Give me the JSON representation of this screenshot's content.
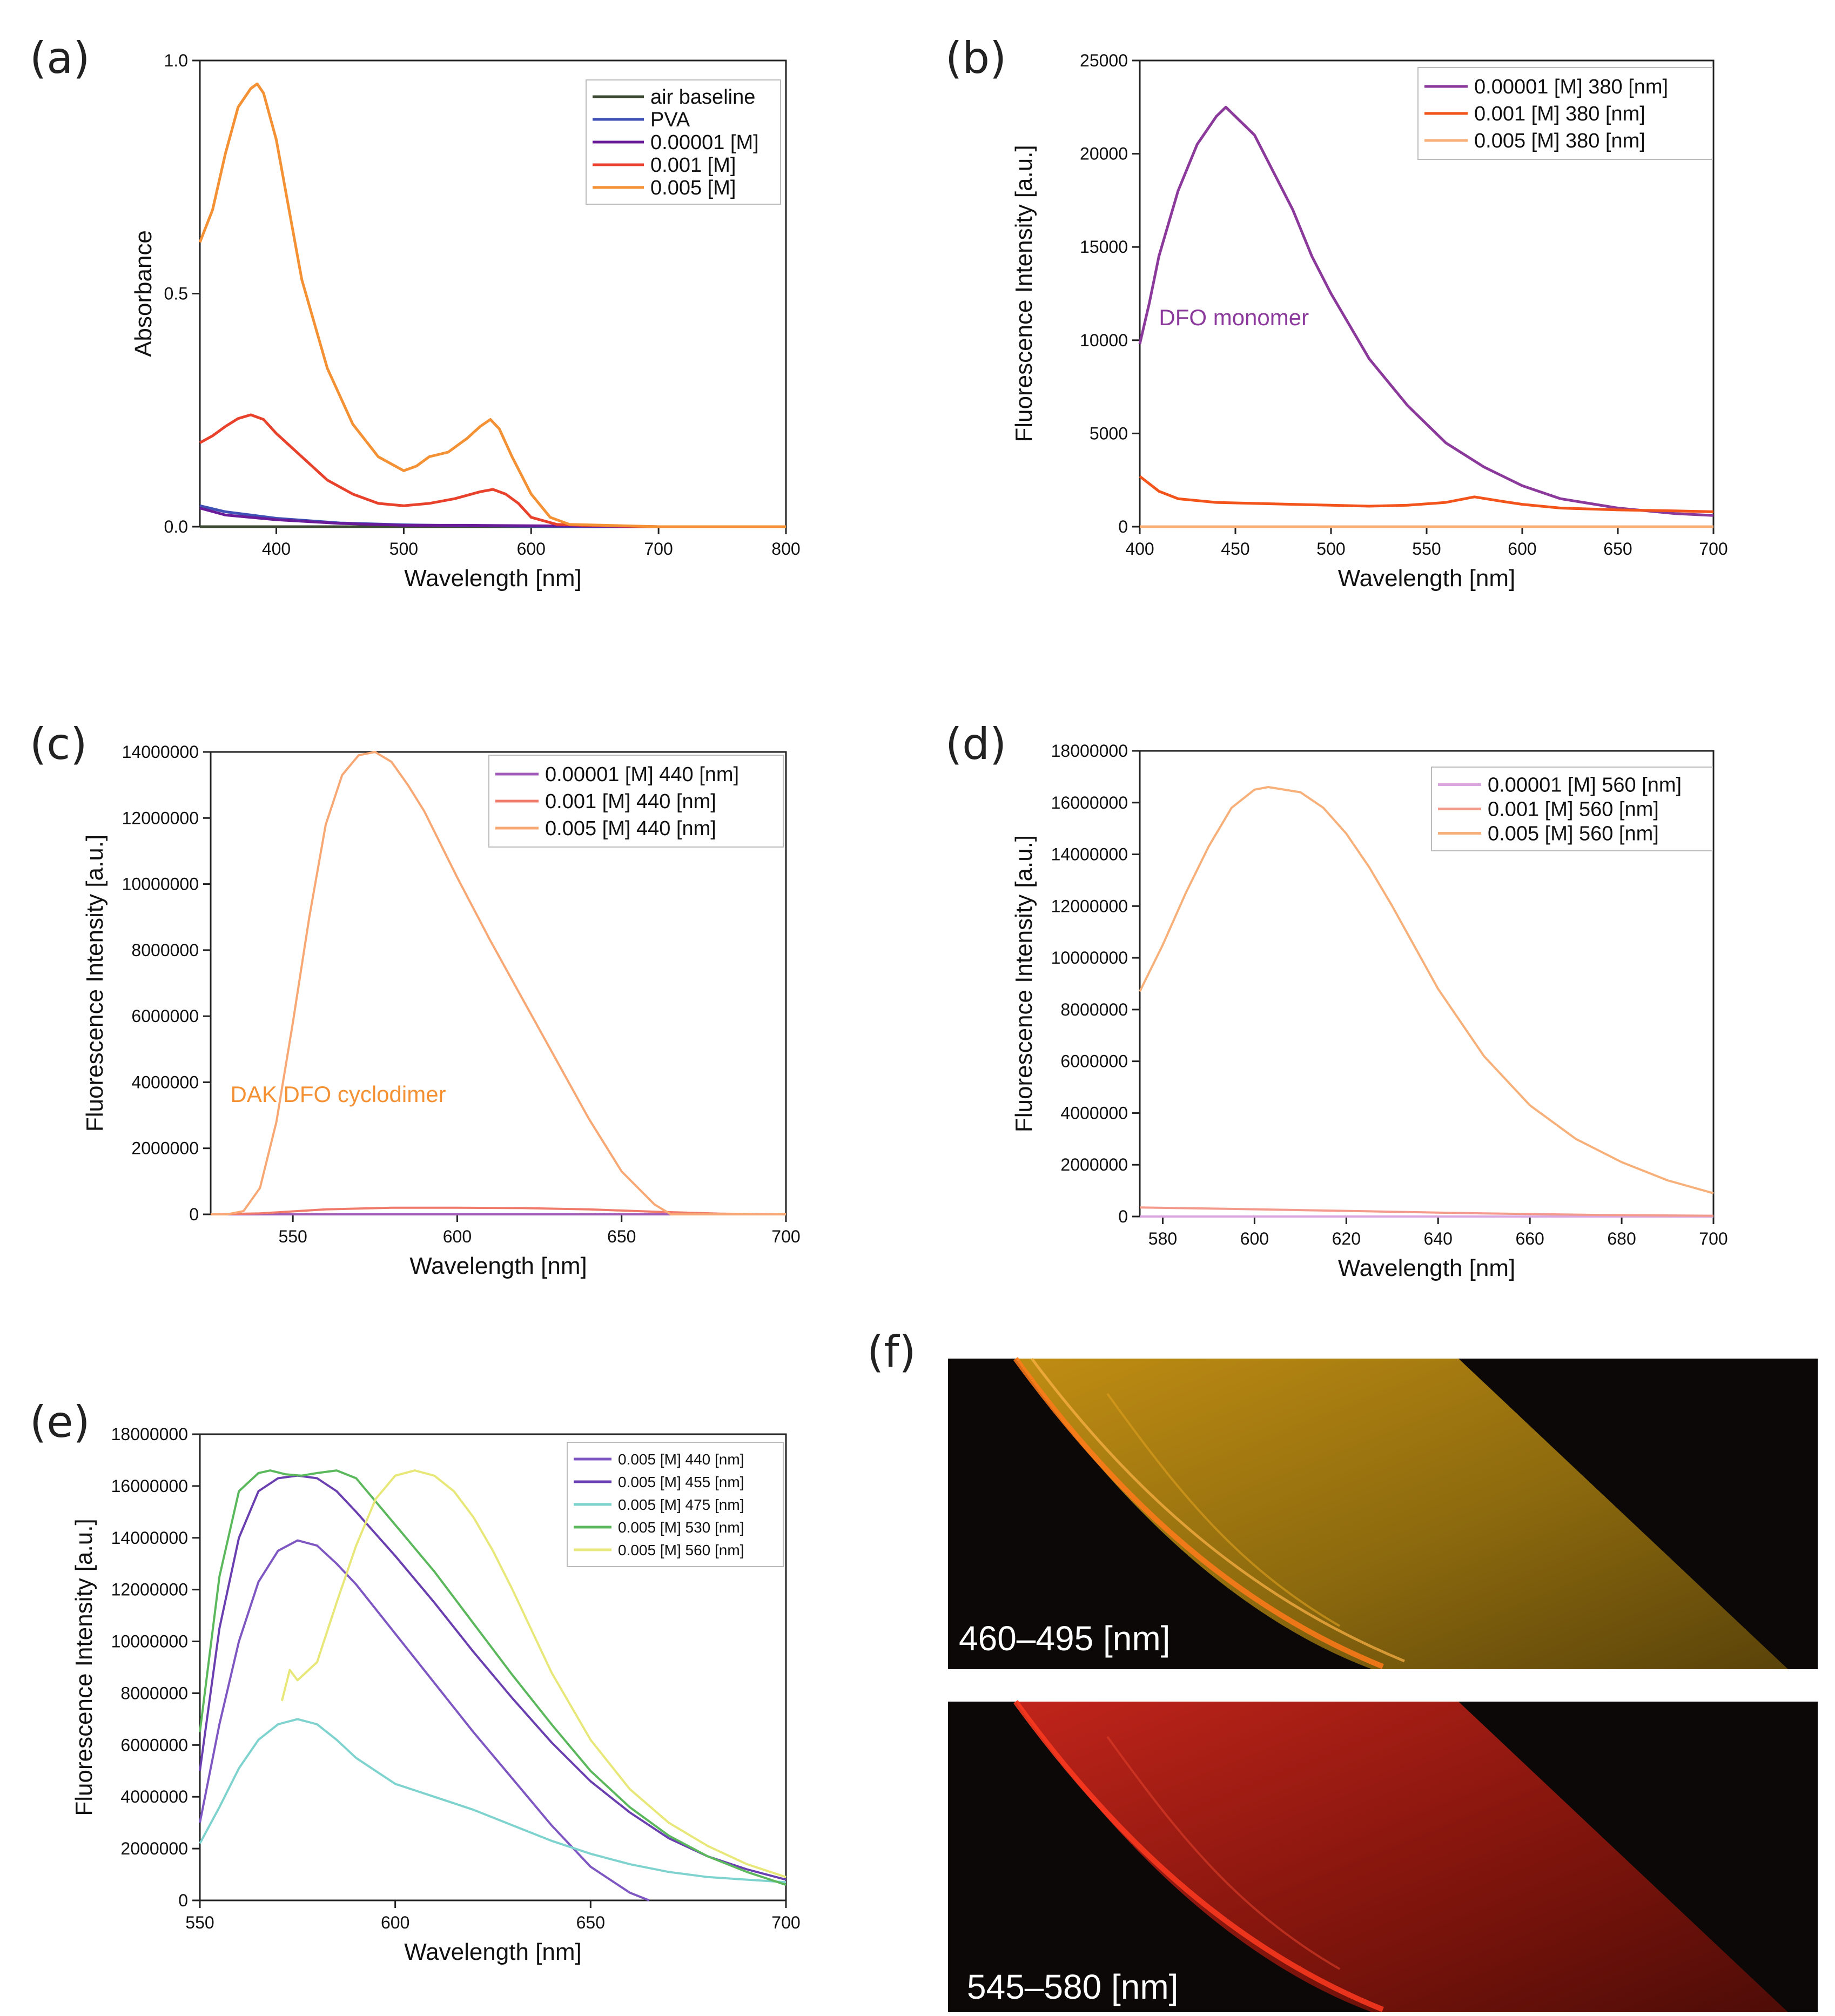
{
  "panels": {
    "a": "(a)",
    "b": "(b)",
    "c": "(c)",
    "d": "(d)",
    "e": "(e)",
    "f": "(f)"
  },
  "chart_data": [
    {
      "id": "a",
      "type": "line",
      "xlabel": "Wavelength [nm]",
      "ylabel": "Absorbance",
      "xlim": [
        340,
        800
      ],
      "ylim": [
        0,
        1.0
      ],
      "xticks": [
        400,
        500,
        600,
        700,
        800
      ],
      "yticks": [
        0.0,
        0.5,
        1.0
      ],
      "ytick_labels": [
        "0.0",
        "0.5",
        "1.0"
      ],
      "legend": "top-right",
      "series": [
        {
          "name": "air baseline",
          "color": "#3d4a33",
          "x": [
            340,
            400,
            500,
            600,
            700,
            800
          ],
          "y": [
            0.0,
            0.0,
            0.0,
            0.0,
            0.0,
            0.0
          ]
        },
        {
          "name": "PVA",
          "color": "#3f51b5",
          "x": [
            340,
            360,
            380,
            400,
            450,
            500,
            550,
            600,
            700,
            800
          ],
          "y": [
            0.045,
            0.032,
            0.025,
            0.018,
            0.008,
            0.004,
            0.002,
            0.001,
            0.0,
            0.0
          ]
        },
        {
          "name": "0.00001 [M]",
          "color": "#6a1b9a",
          "x": [
            340,
            360,
            380,
            400,
            450,
            500,
            550,
            600,
            700,
            800
          ],
          "y": [
            0.04,
            0.025,
            0.02,
            0.015,
            0.007,
            0.003,
            0.003,
            0.002,
            0.0,
            0.0
          ]
        },
        {
          "name": "0.001 [M]",
          "color": "#e8412c",
          "x": [
            340,
            350,
            360,
            370,
            380,
            390,
            400,
            420,
            440,
            460,
            480,
            500,
            520,
            540,
            560,
            570,
            580,
            590,
            600,
            620,
            650,
            700,
            800
          ],
          "y": [
            0.18,
            0.195,
            0.215,
            0.232,
            0.24,
            0.23,
            0.2,
            0.15,
            0.1,
            0.07,
            0.05,
            0.045,
            0.05,
            0.06,
            0.075,
            0.08,
            0.07,
            0.05,
            0.02,
            0.005,
            0.002,
            0.0,
            0.0
          ]
        },
        {
          "name": "0.005 [M]",
          "color": "#f39134",
          "x": [
            340,
            350,
            360,
            370,
            380,
            385,
            390,
            400,
            410,
            420,
            440,
            460,
            480,
            500,
            510,
            520,
            535,
            550,
            560,
            568,
            575,
            585,
            600,
            615,
            630,
            700,
            800
          ],
          "y": [
            0.61,
            0.68,
            0.8,
            0.9,
            0.94,
            0.95,
            0.93,
            0.83,
            0.68,
            0.53,
            0.34,
            0.22,
            0.15,
            0.12,
            0.13,
            0.15,
            0.16,
            0.19,
            0.215,
            0.23,
            0.21,
            0.15,
            0.07,
            0.02,
            0.005,
            0.0,
            0.0
          ]
        }
      ]
    },
    {
      "id": "b",
      "type": "line",
      "xlabel": "Wavelength [nm]",
      "ylabel": "Fluorescence Intensity [a.u.]",
      "xlim": [
        400,
        700
      ],
      "ylim": [
        0,
        25000
      ],
      "xticks": [
        400,
        450,
        500,
        550,
        600,
        650,
        700
      ],
      "yticks": [
        0,
        5000,
        10000,
        15000,
        20000,
        25000
      ],
      "ytick_labels": [
        "0",
        "5000",
        "10000",
        "15000",
        "20000",
        "25000"
      ],
      "legend": "top-right",
      "annotation": "DFO monomer",
      "series": [
        {
          "name": "0.00001 [M] 380 [nm]",
          "color": "#8b3a9c",
          "x": [
            400,
            405,
            410,
            420,
            430,
            440,
            445,
            450,
            460,
            470,
            480,
            490,
            500,
            520,
            540,
            560,
            580,
            600,
            620,
            650,
            680,
            700
          ],
          "y": [
            9800,
            12000,
            14500,
            18000,
            20500,
            22000,
            22500,
            22000,
            21000,
            19000,
            17000,
            14500,
            12500,
            9000,
            6500,
            4500,
            3200,
            2200,
            1500,
            1000,
            700,
            600
          ]
        },
        {
          "name": "0.001 [M] 380 [nm]",
          "color": "#f2541b",
          "x": [
            400,
            410,
            420,
            440,
            460,
            480,
            500,
            520,
            540,
            560,
            575,
            590,
            600,
            620,
            650,
            680,
            700
          ],
          "y": [
            2700,
            1900,
            1500,
            1300,
            1250,
            1200,
            1150,
            1100,
            1150,
            1300,
            1600,
            1350,
            1200,
            1000,
            900,
            850,
            800
          ]
        },
        {
          "name": "0.005 [M] 380 [nm]",
          "color": "#f8b07a",
          "x": [
            400,
            450,
            500,
            550,
            600,
            650,
            700
          ],
          "y": [
            0,
            0,
            0,
            0,
            0,
            0,
            0
          ]
        }
      ]
    },
    {
      "id": "c",
      "type": "line",
      "xlabel": "Wavelength [nm]",
      "ylabel": "Fluorescence Intensity [a.u.]",
      "xlim": [
        525,
        700
      ],
      "ylim": [
        0,
        14000000
      ],
      "xticks": [
        550,
        600,
        650,
        700
      ],
      "yticks": [
        0,
        2000000,
        4000000,
        6000000,
        8000000,
        10000000,
        12000000,
        14000000
      ],
      "ytick_labels": [
        "0",
        "2000000",
        "4000000",
        "6000000",
        "8000000",
        "10000000",
        "12000000",
        "14000000"
      ],
      "legend": "top-right",
      "annotation": "DAK DFO cyclodimer",
      "series": [
        {
          "name": "0.00001 [M] 440 [nm]",
          "color": "#a05cb8",
          "x": [
            525,
            600,
            700
          ],
          "y": [
            0,
            0,
            0
          ]
        },
        {
          "name": "0.001 [M] 440 [nm]",
          "color": "#f07b6a",
          "x": [
            525,
            540,
            560,
            580,
            600,
            620,
            640,
            660,
            680,
            700
          ],
          "y": [
            0,
            30000,
            150000,
            200000,
            200000,
            190000,
            150000,
            80000,
            20000,
            0
          ]
        },
        {
          "name": "0.005 [M] 440 [nm]",
          "color": "#f8a874",
          "x": [
            525,
            530,
            535,
            540,
            545,
            550,
            555,
            560,
            565,
            570,
            575,
            580,
            585,
            590,
            600,
            610,
            620,
            630,
            640,
            650,
            660,
            665,
            700
          ],
          "y": [
            0,
            0,
            100000,
            800000,
            2800000,
            5800000,
            9000000,
            11800000,
            13300000,
            13900000,
            14000000,
            13700000,
            13000000,
            12200000,
            10200000,
            8300000,
            6500000,
            4700000,
            2900000,
            1300000,
            300000,
            0,
            0
          ]
        }
      ]
    },
    {
      "id": "d",
      "type": "line",
      "xlabel": "Wavelength [nm]",
      "ylabel": "Fluorescence Intensity [a.u.]",
      "xlim": [
        575,
        700
      ],
      "ylim": [
        0,
        18000000
      ],
      "xticks": [
        580,
        600,
        620,
        640,
        660,
        680,
        700
      ],
      "yticks": [
        0,
        2000000,
        4000000,
        6000000,
        8000000,
        10000000,
        12000000,
        14000000,
        16000000,
        18000000
      ],
      "ytick_labels": [
        "0",
        "2000000",
        "4000000",
        "6000000",
        "8000000",
        "10000000",
        "12000000",
        "14000000",
        "16000000",
        "18000000"
      ],
      "legend": "top-right",
      "series": [
        {
          "name": "0.00001 [M] 560 [nm]",
          "color": "#d9a6e0",
          "x": [
            575,
            700
          ],
          "y": [
            0,
            0
          ]
        },
        {
          "name": "0.001 [M] 560 [nm]",
          "color": "#f39a8c",
          "x": [
            575,
            600,
            625,
            650,
            675,
            700
          ],
          "y": [
            350000,
            280000,
            200000,
            120000,
            60000,
            30000
          ]
        },
        {
          "name": "0.005 [M] 560 [nm]",
          "color": "#f8b07a",
          "x": [
            575,
            580,
            585,
            590,
            595,
            600,
            603,
            610,
            615,
            620,
            625,
            630,
            635,
            640,
            650,
            660,
            670,
            680,
            690,
            700
          ],
          "y": [
            8700000,
            10500000,
            12500000,
            14300000,
            15800000,
            16500000,
            16600000,
            16400000,
            15800000,
            14800000,
            13500000,
            12000000,
            10400000,
            8800000,
            6200000,
            4300000,
            3000000,
            2100000,
            1400000,
            900000
          ]
        }
      ]
    },
    {
      "id": "e",
      "type": "line",
      "xlabel": "Wavelength [nm]",
      "ylabel": "Fluorescence Intensity [a.u.]",
      "xlim": [
        550,
        700
      ],
      "ylim": [
        0,
        18000000
      ],
      "xticks": [
        550,
        600,
        650,
        700
      ],
      "yticks": [
        0,
        2000000,
        4000000,
        6000000,
        8000000,
        10000000,
        12000000,
        14000000,
        16000000,
        18000000
      ],
      "ytick_labels": [
        "0",
        "2000000",
        "4000000",
        "6000000",
        "8000000",
        "10000000",
        "12000000",
        "14000000",
        "16000000",
        "18000000"
      ],
      "legend": "top-right",
      "series": [
        {
          "name": "0.005 [M] 440 [nm]",
          "color": "#7e57c2",
          "x": [
            550,
            555,
            560,
            565,
            570,
            575,
            580,
            585,
            590,
            600,
            610,
            620,
            630,
            640,
            650,
            660,
            665
          ],
          "y": [
            3000000,
            6800000,
            10000000,
            12300000,
            13500000,
            13900000,
            13700000,
            13000000,
            12200000,
            10300000,
            8400000,
            6500000,
            4700000,
            2900000,
            1300000,
            300000,
            0
          ]
        },
        {
          "name": "0.005 [M] 455 [nm]",
          "color": "#6a3fb0",
          "x": [
            550,
            555,
            560,
            565,
            570,
            575,
            580,
            585,
            590,
            600,
            610,
            620,
            630,
            640,
            650,
            660,
            670,
            680,
            690,
            700
          ],
          "y": [
            5000000,
            10500000,
            14000000,
            15800000,
            16300000,
            16400000,
            16300000,
            15800000,
            15000000,
            13300000,
            11500000,
            9600000,
            7800000,
            6100000,
            4600000,
            3400000,
            2400000,
            1700000,
            1200000,
            800000
          ]
        },
        {
          "name": "0.005 [M] 475 [nm]",
          "color": "#7fd3cf",
          "x": [
            550,
            555,
            560,
            565,
            570,
            575,
            580,
            585,
            590,
            600,
            610,
            620,
            630,
            640,
            650,
            660,
            670,
            680,
            690,
            700
          ],
          "y": [
            2200000,
            3600000,
            5100000,
            6200000,
            6800000,
            7000000,
            6800000,
            6200000,
            5500000,
            4500000,
            4000000,
            3500000,
            2900000,
            2300000,
            1800000,
            1400000,
            1100000,
            900000,
            800000,
            700000
          ]
        },
        {
          "name": "0.005 [M] 530 [nm]",
          "color": "#5cb85c",
          "x": [
            550,
            555,
            560,
            565,
            568,
            572,
            576,
            580,
            585,
            590,
            600,
            610,
            620,
            630,
            640,
            650,
            660,
            670,
            680,
            690,
            700
          ],
          "y": [
            6500000,
            12500000,
            15800000,
            16500000,
            16600000,
            16450000,
            16400000,
            16500000,
            16600000,
            16300000,
            14500000,
            12700000,
            10700000,
            8700000,
            6800000,
            5000000,
            3600000,
            2500000,
            1700000,
            1100000,
            600000
          ]
        },
        {
          "name": "0.005 [M] 560 [nm]",
          "color": "#e8e87a",
          "x": [
            571,
            573,
            575,
            580,
            585,
            590,
            595,
            600,
            605,
            610,
            615,
            620,
            625,
            630,
            640,
            650,
            660,
            670,
            680,
            690,
            700
          ],
          "y": [
            7700000,
            8900000,
            8500000,
            9200000,
            11500000,
            13700000,
            15500000,
            16400000,
            16600000,
            16400000,
            15800000,
            14800000,
            13500000,
            12000000,
            8800000,
            6200000,
            4300000,
            3000000,
            2100000,
            1400000,
            900000
          ]
        }
      ]
    }
  ],
  "micrographs": {
    "top_label": "460–495 [nm]",
    "bottom_label": "545–580 [nm]",
    "top_color": "#b48a12",
    "bottom_color": "#9c1a0e"
  }
}
